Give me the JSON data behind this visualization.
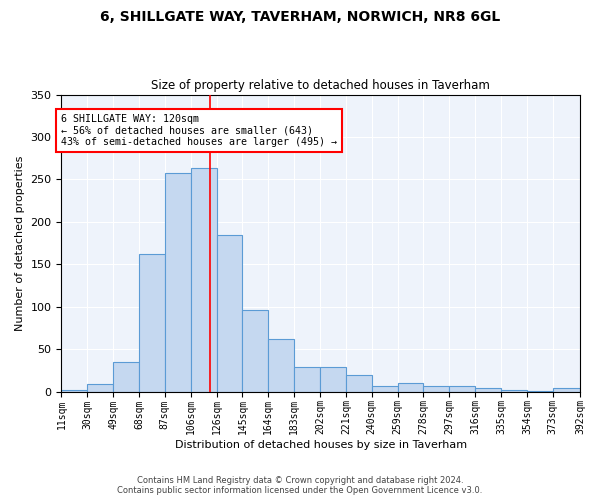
{
  "title": "6, SHILLGATE WAY, TAVERHAM, NORWICH, NR8 6GL",
  "subtitle": "Size of property relative to detached houses in Taverham",
  "xlabel": "Distribution of detached houses by size in Taverham",
  "ylabel": "Number of detached properties",
  "bar_color": "#c5d8f0",
  "bar_edge_color": "#5b9bd5",
  "background_color": "#eef3fb",
  "grid_color": "#ffffff",
  "vline_x": 120,
  "vline_color": "red",
  "annotation_line1": "6 SHILLGATE WAY: 120sqm",
  "annotation_line2": "← 56% of detached houses are smaller (643)",
  "annotation_line3": "43% of semi-detached houses are larger (495) →",
  "annotation_box_color": "white",
  "annotation_box_edge": "red",
  "bin_edges": [
    11,
    30,
    49,
    68,
    87,
    106,
    125,
    144,
    163,
    182,
    201,
    220,
    239,
    258,
    277,
    296,
    315,
    334,
    353,
    372,
    392
  ],
  "bar_heights": [
    2,
    9,
    35,
    162,
    258,
    263,
    184,
    96,
    62,
    29,
    29,
    20,
    6,
    10,
    6,
    6,
    4,
    2,
    1,
    4
  ],
  "tick_labels": [
    "11sqm",
    "30sqm",
    "49sqm",
    "68sqm",
    "87sqm",
    "106sqm",
    "126sqm",
    "145sqm",
    "164sqm",
    "183sqm",
    "202sqm",
    "221sqm",
    "240sqm",
    "259sqm",
    "278sqm",
    "297sqm",
    "316sqm",
    "335sqm",
    "354sqm",
    "373sqm",
    "392sqm"
  ],
  "footer_line1": "Contains HM Land Registry data © Crown copyright and database right 2024.",
  "footer_line2": "Contains public sector information licensed under the Open Government Licence v3.0.",
  "ylim": [
    0,
    350
  ],
  "yticks": [
    0,
    50,
    100,
    150,
    200,
    250,
    300,
    350
  ],
  "figsize": [
    6.0,
    5.0
  ],
  "dpi": 100
}
